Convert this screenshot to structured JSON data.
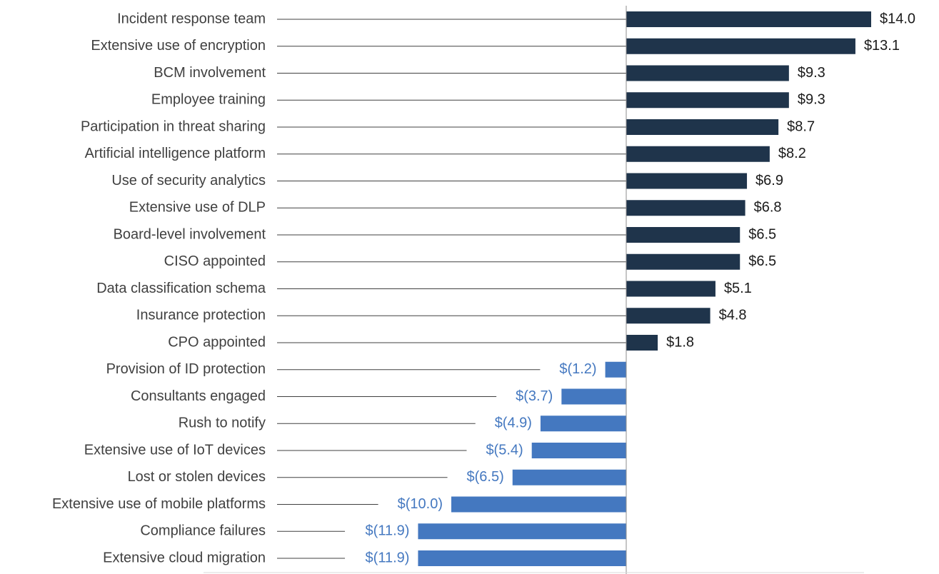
{
  "chart_data": {
    "type": "bar",
    "orientation": "horizontal",
    "title": "",
    "xlabel": "",
    "ylabel": "",
    "categories": [
      "Incident response team",
      "Extensive use of encryption",
      "BCM involvement",
      "Employee training",
      "Participation in threat sharing",
      "Artificial intelligence platform",
      "Use of security analytics",
      "Extensive use of DLP",
      "Board-level involvement",
      "CISO appointed",
      "Data classification schema",
      "Insurance protection",
      "CPO appointed",
      "Provision of ID protection",
      "Consultants engaged",
      "Rush to notify",
      "Extensive use of IoT devices",
      "Lost or stolen devices",
      "Extensive use of mobile platforms",
      "Compliance failures",
      "Extensive cloud migration"
    ],
    "values": [
      14.0,
      13.1,
      9.3,
      9.3,
      8.7,
      8.2,
      6.9,
      6.8,
      6.5,
      6.5,
      5.1,
      4.8,
      1.8,
      -1.2,
      -3.7,
      -4.9,
      -5.4,
      -6.5,
      -10.0,
      -11.9,
      -11.9
    ],
    "value_labels": [
      "$14.0",
      "$13.1",
      "$9.3",
      "$9.3",
      "$8.7",
      "$8.2",
      "$6.9",
      "$6.8",
      "$6.5",
      "$6.5",
      "$5.1",
      "$4.8",
      "$1.8",
      "$(1.2)",
      "$(3.7)",
      "$(4.9)",
      "$(5.4)",
      "$(6.5)",
      "$(10.0)",
      "$(11.9)",
      "$(11.9)"
    ],
    "xlim": [
      -20,
      17.5
    ],
    "grid": false,
    "legend": null,
    "colors": {
      "positive": "#1f344b",
      "negative": "#4478c0",
      "positive_label": "#1a1a1a",
      "negative_label": "#4478c0",
      "category_label": "#404040",
      "leader_line": "#404040",
      "axis": "#8c8c8c"
    }
  }
}
